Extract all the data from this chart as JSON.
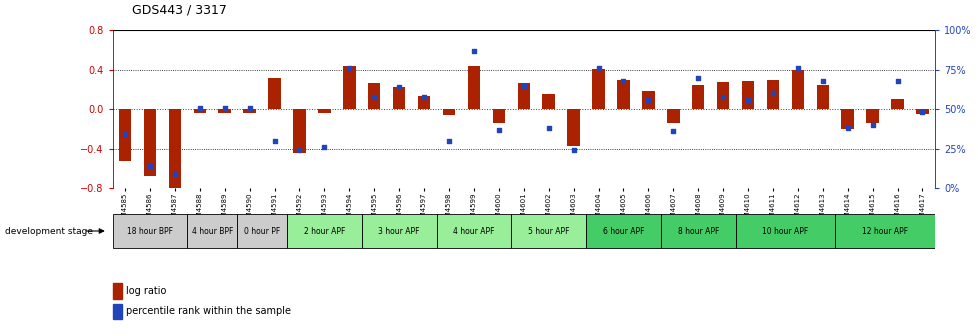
{
  "title": "GDS443 / 3317",
  "samples": [
    "GSM4585",
    "GSM4586",
    "GSM4587",
    "GSM4588",
    "GSM4589",
    "GSM4590",
    "GSM4591",
    "GSM4592",
    "GSM4593",
    "GSM4594",
    "GSM4595",
    "GSM4596",
    "GSM4597",
    "GSM4598",
    "GSM4599",
    "GSM4600",
    "GSM4601",
    "GSM4602",
    "GSM4603",
    "GSM4604",
    "GSM4605",
    "GSM4606",
    "GSM4607",
    "GSM4608",
    "GSM4609",
    "GSM4610",
    "GSM4611",
    "GSM4612",
    "GSM4613",
    "GSM4614",
    "GSM4615",
    "GSM4616",
    "GSM4617"
  ],
  "log_ratio": [
    -0.52,
    -0.68,
    -0.82,
    -0.04,
    -0.04,
    -0.04,
    0.32,
    -0.44,
    -0.04,
    0.44,
    0.27,
    0.22,
    0.13,
    -0.06,
    0.44,
    -0.14,
    0.27,
    0.15,
    -0.37,
    0.41,
    0.3,
    0.18,
    -0.14,
    0.25,
    0.28,
    0.29,
    0.3,
    0.4,
    0.25,
    -0.2,
    -0.14,
    0.1,
    -0.05
  ],
  "percentile": [
    34,
    14,
    9,
    51,
    51,
    51,
    30,
    24,
    26,
    76,
    58,
    64,
    58,
    30,
    87,
    37,
    65,
    38,
    24,
    76,
    68,
    56,
    36,
    70,
    58,
    56,
    60,
    76,
    68,
    38,
    40,
    68,
    48
  ],
  "stages": [
    {
      "label": "18 hour BPF",
      "start": 0,
      "end": 2,
      "color": "#cccccc"
    },
    {
      "label": "4 hour BPF",
      "start": 3,
      "end": 4,
      "color": "#cccccc"
    },
    {
      "label": "0 hour PF",
      "start": 5,
      "end": 6,
      "color": "#cccccc"
    },
    {
      "label": "2 hour APF",
      "start": 7,
      "end": 9,
      "color": "#99ee99"
    },
    {
      "label": "3 hour APF",
      "start": 10,
      "end": 12,
      "color": "#99ee99"
    },
    {
      "label": "4 hour APF",
      "start": 13,
      "end": 15,
      "color": "#99ee99"
    },
    {
      "label": "5 hour APF",
      "start": 16,
      "end": 18,
      "color": "#99ee99"
    },
    {
      "label": "6 hour APF",
      "start": 19,
      "end": 21,
      "color": "#44cc66"
    },
    {
      "label": "8 hour APF",
      "start": 22,
      "end": 24,
      "color": "#44cc66"
    },
    {
      "label": "10 hour APF",
      "start": 25,
      "end": 28,
      "color": "#44cc66"
    },
    {
      "label": "12 hour APF",
      "start": 29,
      "end": 32,
      "color": "#44cc66"
    }
  ],
  "ylim_left": [
    -0.8,
    0.8
  ],
  "ylim_right": [
    0,
    100
  ],
  "bar_color": "#aa2200",
  "dot_color": "#2244bb",
  "dotline_color": "#cc0000",
  "bg_color": "#ffffff"
}
